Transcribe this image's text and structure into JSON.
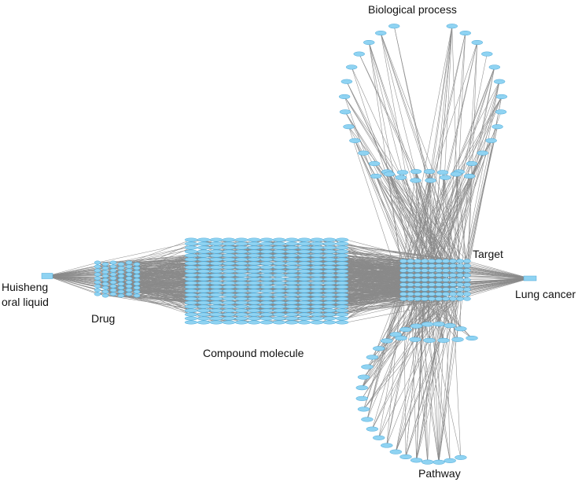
{
  "labels": {
    "biological_process": "Biological process",
    "target": "Target",
    "lung_cancer": "Lung cancer",
    "huisheng_line1": "Huisheng",
    "huisheng_line2": "oral liquid",
    "drug": "Drug",
    "compound_molecule": "Compound molecule",
    "pathway": "Pathway"
  },
  "colors": {
    "node_fill": "#8fd3f2",
    "node_stroke": "#4aa8d8",
    "edge": "#8a8a8a",
    "text": "#111111"
  }
}
